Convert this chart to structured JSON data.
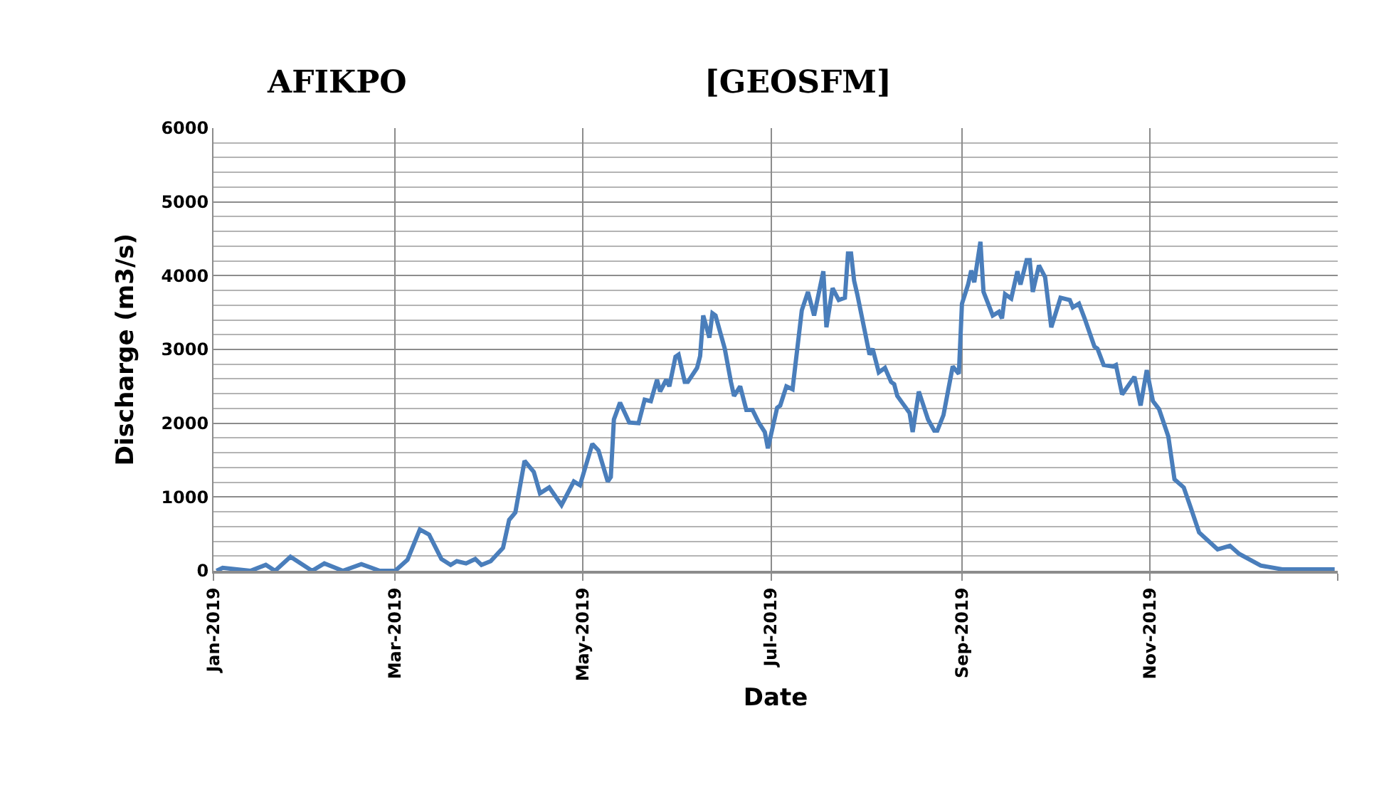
{
  "chart_data": {
    "type": "line",
    "title": "AFIKPO",
    "subtitle": "[GEOSFM]",
    "xlabel": "Date",
    "ylabel": "Discharge (m3/s)",
    "x": [
      "2019-01-02",
      "2019-01-04",
      "2019-01-13",
      "2019-01-18",
      "2019-01-21",
      "2019-01-26",
      "2019-02-02",
      "2019-02-06",
      "2019-02-12",
      "2019-02-18",
      "2019-02-24",
      "2019-03-01",
      "2019-03-05",
      "2019-03-09",
      "2019-03-12",
      "2019-03-16",
      "2019-03-19",
      "2019-03-21",
      "2019-03-24",
      "2019-03-27",
      "2019-03-29",
      "2019-04-01",
      "2019-04-05",
      "2019-04-07",
      "2019-04-09",
      "2019-04-12",
      "2019-04-15",
      "2019-04-17",
      "2019-04-20",
      "2019-04-24",
      "2019-04-28",
      "2019-04-30",
      "2019-05-04",
      "2019-05-06",
      "2019-05-09",
      "2019-05-10",
      "2019-05-11",
      "2019-05-13",
      "2019-05-16",
      "2019-05-19",
      "2019-05-21",
      "2019-05-23",
      "2019-05-25",
      "2019-05-26",
      "2019-05-28",
      "2019-05-29",
      "2019-05-31",
      "2019-06-01",
      "2019-06-03",
      "2019-06-04",
      "2019-06-07",
      "2019-06-08",
      "2019-06-09",
      "2019-06-11",
      "2019-06-12",
      "2019-06-13",
      "2019-06-16",
      "2019-06-18",
      "2019-06-19",
      "2019-06-21",
      "2019-06-23",
      "2019-06-25",
      "2019-06-27",
      "2019-06-29",
      "2019-06-30",
      "2019-07-03",
      "2019-07-04",
      "2019-07-06",
      "2019-07-08",
      "2019-07-11",
      "2019-07-13",
      "2019-07-15",
      "2019-07-18",
      "2019-07-19",
      "2019-07-21",
      "2019-07-23",
      "2019-07-25",
      "2019-07-26",
      "2019-07-27",
      "2019-07-28",
      "2019-07-29",
      "2019-08-02",
      "2019-08-03",
      "2019-08-05",
      "2019-08-07",
      "2019-08-09",
      "2019-08-10",
      "2019-08-11",
      "2019-08-15",
      "2019-08-16",
      "2019-08-18",
      "2019-08-21",
      "2019-08-23",
      "2019-08-24",
      "2019-08-26",
      "2019-08-29",
      "2019-08-31",
      "2019-09-01",
      "2019-09-03",
      "2019-09-04",
      "2019-09-05",
      "2019-09-07",
      "2019-09-08",
      "2019-09-11",
      "2019-09-13",
      "2019-09-14",
      "2019-09-15",
      "2019-09-17",
      "2019-09-19",
      "2019-09-20",
      "2019-09-22",
      "2019-09-23",
      "2019-09-24",
      "2019-09-26",
      "2019-09-28",
      "2019-09-30",
      "2019-10-03",
      "2019-10-06",
      "2019-10-07",
      "2019-10-09",
      "2019-10-11",
      "2019-10-14",
      "2019-10-15",
      "2019-10-17",
      "2019-10-20",
      "2019-10-21",
      "2019-10-23",
      "2019-10-27",
      "2019-10-29",
      "2019-10-31",
      "2019-11-02",
      "2019-11-04",
      "2019-11-07",
      "2019-11-09",
      "2019-11-12",
      "2019-11-14",
      "2019-11-17",
      "2019-11-23",
      "2019-11-27",
      "2019-11-30",
      "2019-12-07",
      "2019-12-14",
      "2019-12-31"
    ],
    "series": [
      {
        "color": "#4a7ebb",
        "values": [
          0,
          40,
          0,
          80,
          0,
          190,
          0,
          100,
          0,
          90,
          0,
          0,
          150,
          560,
          490,
          160,
          80,
          130,
          100,
          160,
          80,
          130,
          310,
          690,
          790,
          1490,
          1340,
          1050,
          1130,
          890,
          1210,
          1160,
          1720,
          1630,
          1210,
          1270,
          2050,
          2280,
          2010,
          2000,
          2320,
          2300,
          2590,
          2430,
          2590,
          2500,
          2900,
          2930,
          2560,
          2560,
          2750,
          2910,
          3460,
          3160,
          3490,
          3460,
          3010,
          2560,
          2370,
          2500,
          2180,
          2180,
          2010,
          1880,
          1660,
          2210,
          2240,
          2500,
          2460,
          3530,
          3780,
          3460,
          4060,
          3300,
          3830,
          3670,
          3700,
          4300,
          4300,
          3930,
          3750,
          2930,
          3010,
          2690,
          2750,
          2560,
          2530,
          2370,
          2140,
          1880,
          2430,
          2050,
          1900,
          1900,
          2110,
          2770,
          2670,
          3620,
          3880,
          4070,
          3910,
          4460,
          3780,
          3460,
          3510,
          3420,
          3750,
          3690,
          4060,
          3880,
          4210,
          4210,
          3780,
          4140,
          3980,
          3300,
          3700,
          3670,
          3570,
          3620,
          3400,
          3040,
          3010,
          2790,
          2770,
          2790,
          2390,
          2630,
          2240,
          2720,
          2300,
          2190,
          1820,
          1240,
          1130,
          890,
          520,
          290,
          340,
          230,
          70,
          20,
          20
        ]
      }
    ],
    "xlim": [
      "2019-01-01",
      "2020-01-01"
    ],
    "xticks": [
      {
        "value": "2019-01-01",
        "label": "Jan-2019"
      },
      {
        "value": "2019-03-01",
        "label": "Mar-2019"
      },
      {
        "value": "2019-05-01",
        "label": "May-2019"
      },
      {
        "value": "2019-07-01",
        "label": "Jul-2019"
      },
      {
        "value": "2019-09-01",
        "label": "Sep-2019"
      },
      {
        "value": "2019-11-01",
        "label": "Nov-2019"
      },
      {
        "value": "2020-01-01",
        "label": null
      }
    ],
    "ylim": [
      0,
      6000
    ],
    "yticks": [
      0,
      1000,
      2000,
      3000,
      4000,
      5000,
      6000
    ],
    "grid": true,
    "marker": "none",
    "line_style": "solid"
  }
}
